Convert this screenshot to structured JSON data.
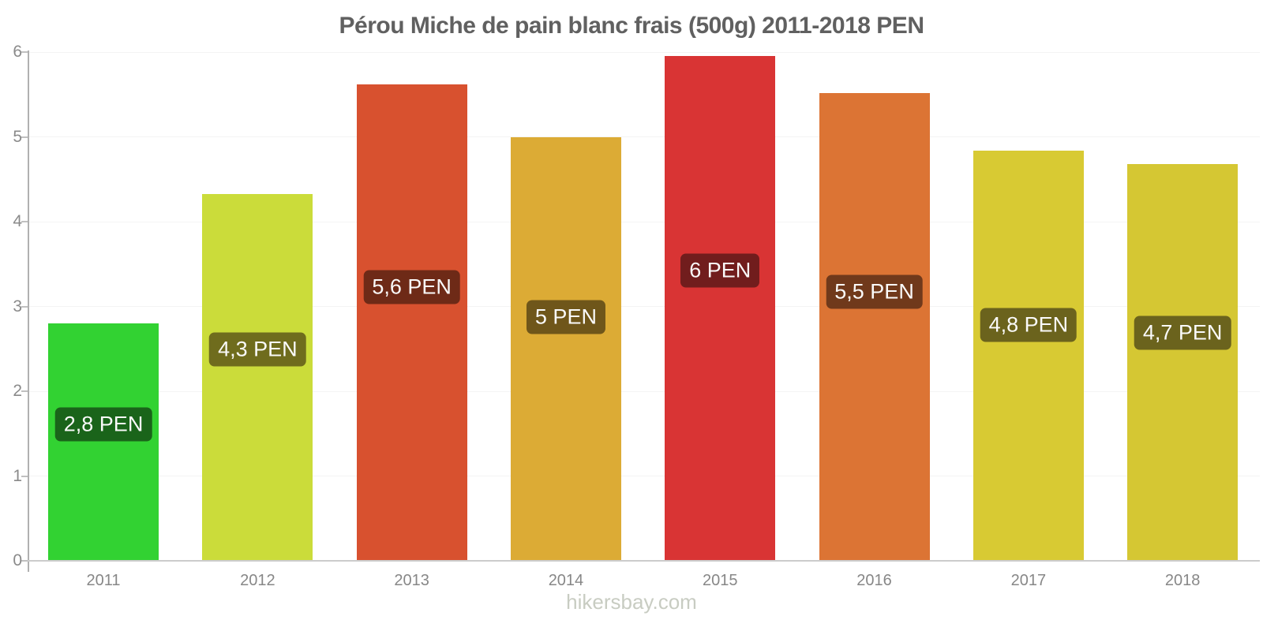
{
  "page": {
    "footer": "hikersbay.com",
    "footer_color": "#c8ccc2"
  },
  "chart_data": {
    "type": "bar",
    "title": "Pérou Miche de pain blanc frais (500g) 2011-2018 PEN",
    "title_color": "#606060",
    "categories": [
      "2011",
      "2012",
      "2013",
      "2014",
      "2015",
      "2016",
      "2017",
      "2018"
    ],
    "values": [
      2.8,
      4.33,
      5.62,
      5.0,
      5.95,
      5.52,
      4.84,
      4.68
    ],
    "bar_labels": [
      "2,8 PEN",
      "4,3 PEN",
      "5,6 PEN",
      "5 PEN",
      "6 PEN",
      "5,5 PEN",
      "4,8 PEN",
      "4,7 PEN"
    ],
    "bar_colors": [
      "#32d232",
      "#cbdc3a",
      "#d8512f",
      "#dcab35",
      "#d93434",
      "#dc7434",
      "#d8ca33",
      "#d5c733"
    ],
    "bar_label_bg_colors": [
      "#1a641a",
      "#6f6c1d",
      "#6e2a17",
      "#6f561a",
      "#711d1d",
      "#70391b",
      "#6b631d",
      "#6b631d"
    ],
    "bar_label_text_color": "#fafafa",
    "xlabel": "",
    "ylabel": "",
    "ylim": [
      0,
      6
    ],
    "yticks": [
      "0",
      "1",
      "2",
      "3",
      "4",
      "5",
      "6"
    ],
    "legend": "none",
    "grid": "faint horizontal gridlines at integer y ticks",
    "axis_color": "#b0b0b0",
    "tick_label_color": "#8a8a8a",
    "xtick_label_color": "#878787"
  }
}
